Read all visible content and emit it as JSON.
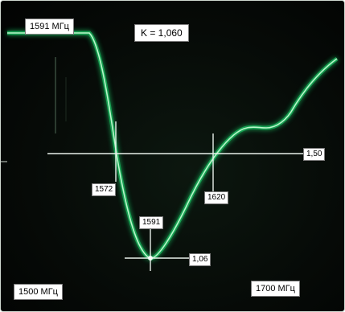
{
  "overlay": {
    "start_label": "1591 МГц",
    "k_label": "K = 1,060",
    "bottom_left_label": "1500 МГц",
    "bottom_right_label": "1700 МГц"
  },
  "markers": {
    "level_label": "1,50",
    "left_freq_label": "1572",
    "right_freq_label": "1620",
    "min_freq_label": "1591",
    "min_value_label": "1,06"
  },
  "colors": {
    "trace": "#86f0a6",
    "trace_glow": "#1fd06a",
    "crosshair": "#e8f0ea",
    "screen_bg": "#050805"
  }
}
